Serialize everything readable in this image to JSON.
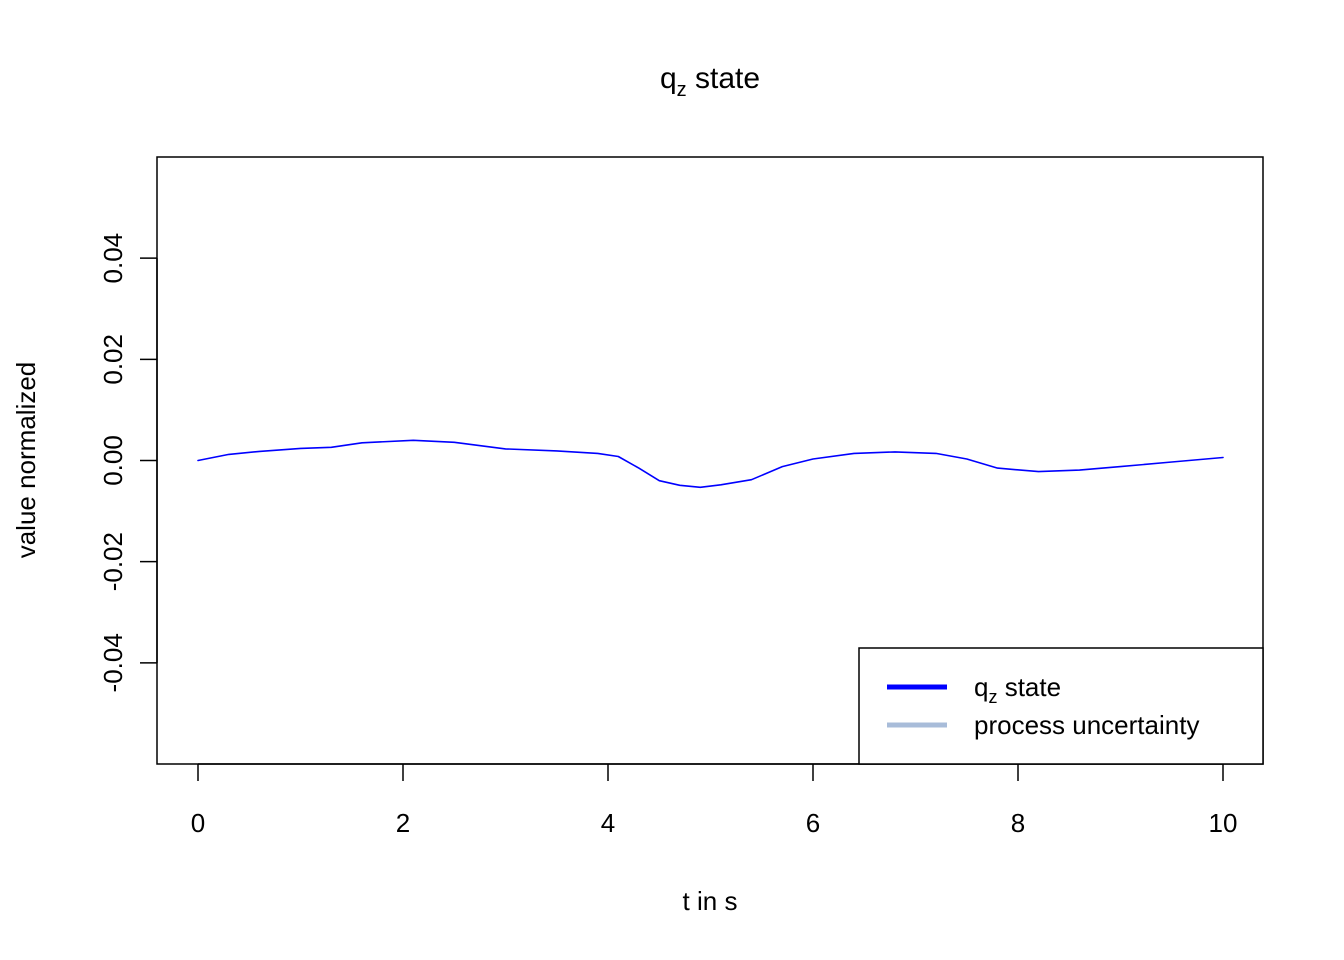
{
  "chart_data": {
    "type": "line",
    "title": {
      "main": "q",
      "subscript": "z",
      "suffix": " state"
    },
    "xlabel": "t in s",
    "ylabel": "value normalized",
    "xlim": [
      0,
      10
    ],
    "ylim": [
      -0.06,
      0.06
    ],
    "x_ticks": [
      0,
      2,
      4,
      6,
      8,
      10
    ],
    "x_tick_labels": [
      "0",
      "2",
      "4",
      "6",
      "8",
      "10"
    ],
    "y_ticks": [
      -0.04,
      -0.02,
      0.0,
      0.02,
      0.04
    ],
    "y_tick_labels": [
      "-0.04",
      "-0.02",
      "0.00",
      "0.02",
      "0.04"
    ],
    "grid": false,
    "legend_position": "bottom-right",
    "series": [
      {
        "name": "q_z state",
        "legend": {
          "main": "q",
          "subscript": "z",
          "suffix": " state"
        },
        "color": "#0000ff",
        "x": [
          0,
          0.3,
          0.6,
          1.0,
          1.3,
          1.6,
          2.1,
          2.5,
          3.0,
          3.5,
          3.9,
          4.1,
          4.3,
          4.5,
          4.7,
          4.9,
          5.1,
          5.4,
          5.7,
          6.0,
          6.4,
          6.8,
          7.2,
          7.5,
          7.8,
          8.2,
          8.6,
          9.0,
          9.5,
          10.0
        ],
        "y": [
          0.0,
          0.0012,
          0.0018,
          0.0024,
          0.0026,
          0.0035,
          0.004,
          0.0036,
          0.0023,
          0.0019,
          0.0014,
          0.0008,
          -0.0015,
          -0.004,
          -0.0049,
          -0.0053,
          -0.0048,
          -0.0038,
          -0.0012,
          0.0003,
          0.0014,
          0.0017,
          0.0014,
          0.0003,
          -0.0015,
          -0.0022,
          -0.0019,
          -0.0012,
          -0.0003,
          0.0006
        ]
      },
      {
        "name": "process uncertainty",
        "legend": {
          "main": "process uncertainty",
          "subscript": "",
          "suffix": ""
        },
        "color": "#a8bcd9",
        "x": [],
        "y": []
      }
    ]
  }
}
